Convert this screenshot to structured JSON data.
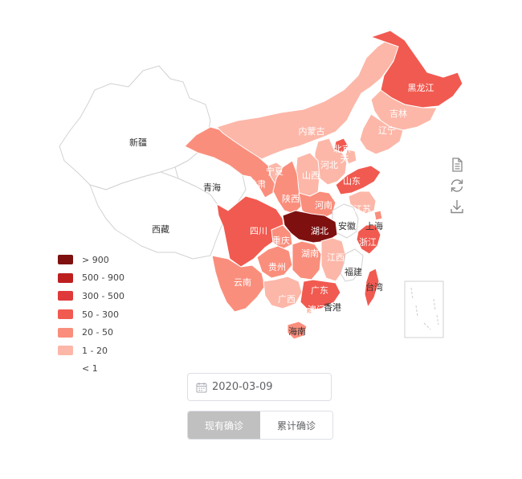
{
  "legend": {
    "items": [
      {
        "label": "> 900",
        "color": "#7f1010"
      },
      {
        "label": "500 - 900",
        "color": "#bd1f1f"
      },
      {
        "label": "300 - 500",
        "color": "#e0393a"
      },
      {
        "label": "50 - 300",
        "color": "#f15a50"
      },
      {
        "label": "20 - 50",
        "color": "#fa8e7c"
      },
      {
        "label": "1 - 20",
        "color": "#fcb7a8"
      },
      {
        "label": "< 1",
        "color": "#ffffff"
      }
    ]
  },
  "map": {
    "colors": {
      "border": "#e3e3e3",
      "white_border": "#d2d2d2"
    },
    "provinces": [
      {
        "id": "xinjiang",
        "name": "新疆",
        "level": "< 1"
      },
      {
        "id": "xizang",
        "name": "西藏",
        "level": "< 1"
      },
      {
        "id": "qinghai",
        "name": "青海",
        "level": "< 1"
      },
      {
        "id": "gansu",
        "name": "甘肃",
        "level": "20 - 50"
      },
      {
        "id": "neimenggu",
        "name": "内蒙古",
        "level": "1 - 20"
      },
      {
        "id": "heilongjiang",
        "name": "黑龙江",
        "level": "50 - 300"
      },
      {
        "id": "jilin",
        "name": "吉林",
        "level": "1 - 20"
      },
      {
        "id": "liaoning",
        "name": "辽宁",
        "level": "1 - 20"
      },
      {
        "id": "beijing",
        "name": "北京",
        "level": "50 - 300"
      },
      {
        "id": "tianjin",
        "name": "天",
        "level": "1 - 20"
      },
      {
        "id": "hebei",
        "name": "河北",
        "level": "1 - 20"
      },
      {
        "id": "shanxi",
        "name": "山西",
        "level": "1 - 20"
      },
      {
        "id": "ningxia",
        "name": "宁夏",
        "level": "1 - 20"
      },
      {
        "id": "shaanxi",
        "name": "陕西",
        "level": "20 - 50"
      },
      {
        "id": "shandong",
        "name": "山东",
        "level": "50 - 300"
      },
      {
        "id": "henan",
        "name": "河南",
        "level": "20 - 50"
      },
      {
        "id": "jiangsu",
        "name": "江苏",
        "level": "1 - 20"
      },
      {
        "id": "anhui",
        "name": "安徽",
        "level": "< 1"
      },
      {
        "id": "hubei",
        "name": "湖北",
        "level": "> 900"
      },
      {
        "id": "sichuan",
        "name": "四川",
        "level": "50 - 300"
      },
      {
        "id": "chongqing",
        "name": "重庆",
        "level": "20 - 50"
      },
      {
        "id": "shanghai",
        "name": "上海",
        "level": "20 - 50"
      },
      {
        "id": "zhejiang",
        "name": "浙江",
        "level": "50 - 300"
      },
      {
        "id": "guizhou",
        "name": "贵州",
        "level": "20 - 50"
      },
      {
        "id": "hunan",
        "name": "湖南",
        "level": "20 - 50"
      },
      {
        "id": "jiangxi",
        "name": "江西",
        "level": "1 - 20"
      },
      {
        "id": "fujian",
        "name": "福建",
        "level": "< 1"
      },
      {
        "id": "yunnan",
        "name": "云南",
        "level": "20 - 50"
      },
      {
        "id": "guangxi",
        "name": "广西",
        "level": "1 - 20"
      },
      {
        "id": "guangdong",
        "name": "广东",
        "level": "50 - 300"
      },
      {
        "id": "xianggang",
        "name": "香港",
        "level": "< 1"
      },
      {
        "id": "aomen",
        "name": "澳门",
        "level": "1 - 20"
      },
      {
        "id": "taiwan",
        "name": "台湾",
        "level": "50 - 300"
      },
      {
        "id": "hainan",
        "name": "海南",
        "level": "20 - 50"
      },
      {
        "id": "nanhai",
        "name": "",
        "level": "< 1"
      }
    ]
  },
  "toolbox": {
    "items": [
      {
        "id": "data-view",
        "icon": "document-icon"
      },
      {
        "id": "restore",
        "icon": "refresh-icon"
      },
      {
        "id": "save-image",
        "icon": "download-icon"
      }
    ]
  },
  "date_picker": {
    "value": "2020-03-09",
    "icon": "calendar-icon"
  },
  "toggle": {
    "current_label": "现有确诊",
    "cumulative_label": "累计确诊",
    "selected": "current"
  }
}
